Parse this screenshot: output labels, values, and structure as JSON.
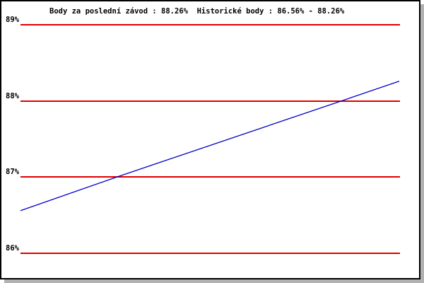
{
  "title": "Body za poslední závod : 88.26%  Historické body : 86.56% - 88.26%",
  "colors": {
    "background": "#ffffff",
    "border": "#000000",
    "shadow": "#b2b2b2",
    "gridline": "#e00000",
    "series_line": "#0000cc",
    "text": "#000000"
  },
  "y_axis": {
    "labels": [
      "89%",
      "88%",
      "87%",
      "86%"
    ]
  },
  "chart_data": {
    "type": "line",
    "title": "Body za poslední závod : 88.26%  Historické body : 86.56% - 88.26%",
    "xlabel": "",
    "ylabel": "",
    "ylim": [
      85.7,
      89.3
    ],
    "grid": true,
    "grid_color": "#e00000",
    "legend": false,
    "yticks": [
      {
        "label": "89%",
        "value": 89
      },
      {
        "label": "88%",
        "value": 88
      },
      {
        "label": "87%",
        "value": 87
      },
      {
        "label": "86%",
        "value": 86
      }
    ],
    "stats": {
      "last_race_points_percent": 88.26,
      "historical_min_percent": 86.56,
      "historical_max_percent": 88.26
    },
    "series": [
      {
        "name": "Historické body",
        "color": "#0000cc",
        "points": [
          {
            "x_frac": 0.0,
            "value": 86.56
          },
          {
            "x_frac": 0.254,
            "value": 87.0
          },
          {
            "x_frac": 0.847,
            "value": 88.0
          },
          {
            "x_frac": 1.0,
            "value": 88.26
          }
        ]
      }
    ]
  }
}
